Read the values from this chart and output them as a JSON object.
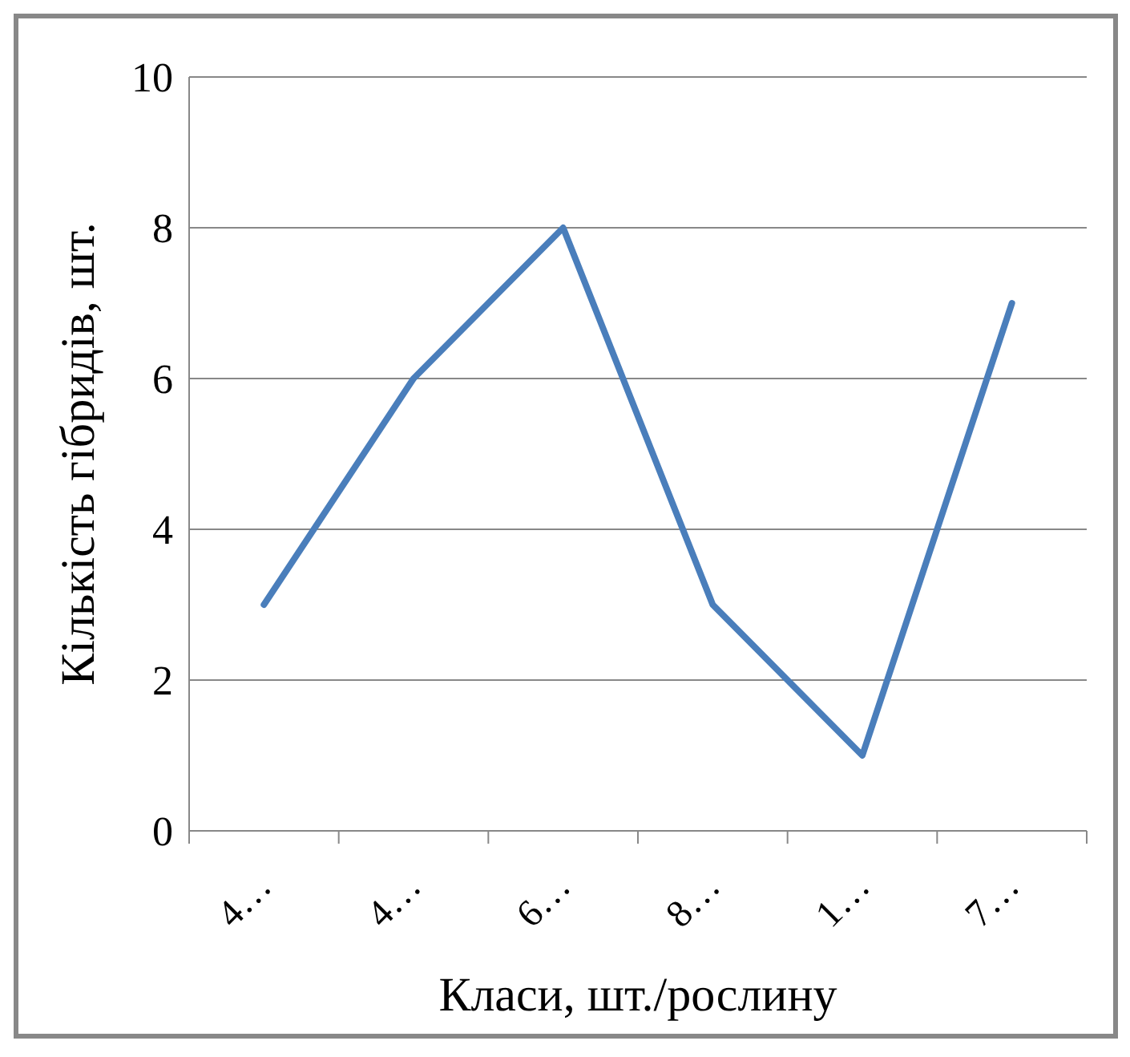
{
  "chart_data": {
    "type": "line",
    "xlabel": "Класи, шт./рослину",
    "ylabel": "Кількість гібридів, шт.",
    "categories": [
      "4…",
      "4…",
      "6…",
      "8…",
      "1…",
      "7…"
    ],
    "series": [
      {
        "color": "#4a7ebb",
        "values": [
          3,
          6,
          8,
          3,
          1,
          7
        ]
      }
    ],
    "ylim": [
      0,
      10
    ],
    "yticks": [
      0,
      2,
      4,
      6,
      8,
      10
    ],
    "grid": "y",
    "marker": "none"
  }
}
